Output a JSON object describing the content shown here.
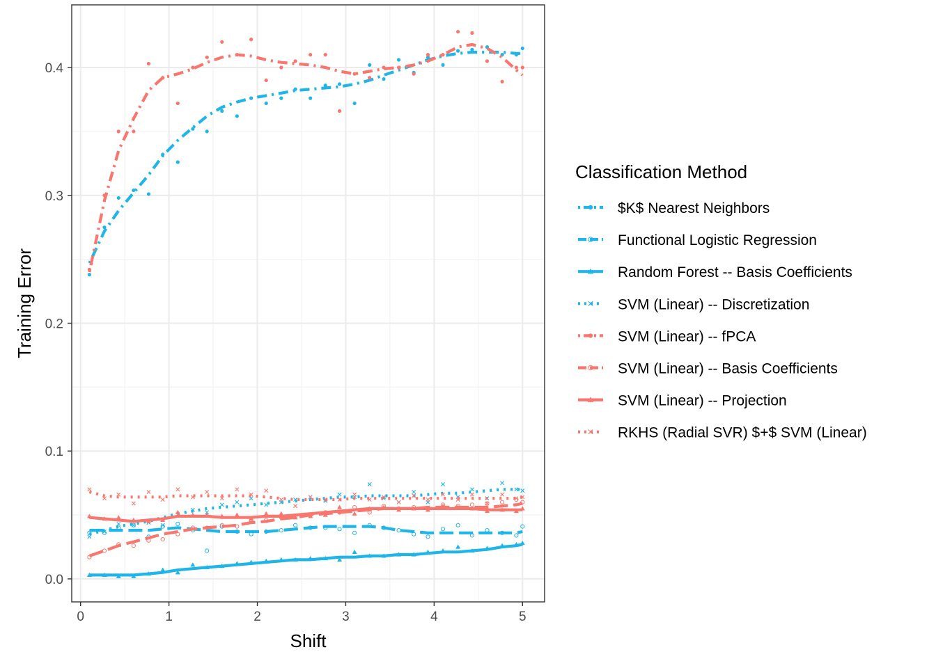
{
  "chart_data": {
    "type": "line",
    "xlabel": "Shift",
    "ylabel": "Training Error",
    "xlim": [
      -0.1,
      5.25
    ],
    "ylim": [
      -0.018,
      0.449
    ],
    "xticks": [
      0,
      1,
      2,
      3,
      4,
      5
    ],
    "yticks": [
      0.0,
      0.1,
      0.2,
      0.3,
      0.4
    ],
    "xtick_labels": [
      "0",
      "1",
      "2",
      "3",
      "4",
      "5"
    ],
    "ytick_labels": [
      "0.0",
      "0.1",
      "0.2",
      "0.3",
      "0.4"
    ],
    "grid": true,
    "legend": {
      "title": "Classification Method",
      "position": "right"
    },
    "colors": {
      "blue": "#00B0F0",
      "red": "#F8766D"
    },
    "series": [
      {
        "name": "$K$ Nearest Neighbors",
        "color": "#1FB5E8",
        "linestyle": "dotdash",
        "marker": "dot",
        "x": [
          0.1,
          0.27,
          0.43,
          0.6,
          0.77,
          0.93,
          1.1,
          1.27,
          1.43,
          1.6,
          1.77,
          1.93,
          2.1,
          2.27,
          2.43,
          2.6,
          2.77,
          2.93,
          3.1,
          3.27,
          3.43,
          3.6,
          3.77,
          3.93,
          4.1,
          4.27,
          4.43,
          4.6,
          4.77,
          4.93,
          5.0
        ],
        "y": [
          0.238,
          0.275,
          0.298,
          0.304,
          0.301,
          0.332,
          0.326,
          0.352,
          0.35,
          0.366,
          0.362,
          0.376,
          0.372,
          0.376,
          0.383,
          0.376,
          0.386,
          0.387,
          0.372,
          0.402,
          0.391,
          0.406,
          0.396,
          0.408,
          0.402,
          0.413,
          0.414,
          0.416,
          0.41,
          0.41,
          0.415
        ],
        "trend": [
          0.247,
          0.272,
          0.288,
          0.302,
          0.316,
          0.331,
          0.343,
          0.353,
          0.362,
          0.369,
          0.373,
          0.376,
          0.378,
          0.38,
          0.382,
          0.383,
          0.384,
          0.385,
          0.387,
          0.39,
          0.394,
          0.398,
          0.402,
          0.406,
          0.409,
          0.411,
          0.412,
          0.412,
          0.412,
          0.411,
          0.411
        ]
      },
      {
        "name": "Functional Logistic Regression",
        "color": "#1FB5E8",
        "linestyle": "longdash",
        "marker": "circle-open",
        "x": [
          0.1,
          0.27,
          0.43,
          0.6,
          0.77,
          0.93,
          1.1,
          1.27,
          1.43,
          1.6,
          1.77,
          1.93,
          2.1,
          2.27,
          2.43,
          2.6,
          2.77,
          2.93,
          3.1,
          3.27,
          3.43,
          3.6,
          3.77,
          3.93,
          4.1,
          4.27,
          4.43,
          4.6,
          4.77,
          4.93,
          5.0
        ],
        "y": [
          0.036,
          0.036,
          0.04,
          0.042,
          0.033,
          0.041,
          0.043,
          0.038,
          0.022,
          0.041,
          0.037,
          0.035,
          0.037,
          0.038,
          0.042,
          0.04,
          0.04,
          0.039,
          0.036,
          0.042,
          0.04,
          0.038,
          0.035,
          0.033,
          0.039,
          0.042,
          0.034,
          0.038,
          0.036,
          0.034,
          0.041
        ],
        "trend": [
          0.038,
          0.038,
          0.038,
          0.038,
          0.038,
          0.039,
          0.04,
          0.039,
          0.038,
          0.037,
          0.037,
          0.037,
          0.037,
          0.038,
          0.039,
          0.04,
          0.041,
          0.041,
          0.041,
          0.041,
          0.04,
          0.038,
          0.037,
          0.036,
          0.036,
          0.036,
          0.036,
          0.036,
          0.036,
          0.036,
          0.037
        ]
      },
      {
        "name": "Random Forest -- Basis Coefficients",
        "color": "#1FB5E8",
        "linestyle": "solid",
        "marker": "triangle",
        "x": [
          0.1,
          0.27,
          0.43,
          0.6,
          0.77,
          0.93,
          1.1,
          1.27,
          1.43,
          1.6,
          1.77,
          1.93,
          2.1,
          2.27,
          2.43,
          2.6,
          2.77,
          2.93,
          3.1,
          3.27,
          3.43,
          3.6,
          3.77,
          3.93,
          4.1,
          4.27,
          4.43,
          4.6,
          4.77,
          4.93,
          5.0
        ],
        "y": [
          0.003,
          0.003,
          0.002,
          0.002,
          0.004,
          0.007,
          0.005,
          0.011,
          0.009,
          0.01,
          0.012,
          0.013,
          0.014,
          0.015,
          0.015,
          0.016,
          0.016,
          0.015,
          0.021,
          0.018,
          0.018,
          0.019,
          0.019,
          0.021,
          0.022,
          0.025,
          0.022,
          0.024,
          0.026,
          0.027,
          0.028
        ],
        "trend": [
          0.003,
          0.003,
          0.003,
          0.003,
          0.004,
          0.005,
          0.007,
          0.008,
          0.009,
          0.01,
          0.011,
          0.012,
          0.013,
          0.014,
          0.015,
          0.015,
          0.016,
          0.017,
          0.017,
          0.018,
          0.018,
          0.019,
          0.019,
          0.02,
          0.021,
          0.021,
          0.022,
          0.023,
          0.025,
          0.026,
          0.027
        ]
      },
      {
        "name": "SVM (Linear) -- Discretization",
        "color": "#1FB5E8",
        "linestyle": "dotted",
        "marker": "x",
        "x": [
          0.1,
          0.27,
          0.43,
          0.6,
          0.77,
          0.93,
          1.1,
          1.27,
          1.43,
          1.6,
          1.77,
          1.93,
          2.1,
          2.27,
          2.43,
          2.6,
          2.77,
          2.93,
          3.1,
          3.27,
          3.43,
          3.6,
          3.77,
          3.93,
          4.1,
          4.27,
          4.43,
          4.6,
          4.77,
          4.93,
          5.0
        ],
        "y": [
          0.033,
          0.037,
          0.043,
          0.042,
          0.044,
          0.042,
          0.05,
          0.054,
          0.052,
          0.058,
          0.06,
          0.063,
          0.058,
          0.06,
          0.062,
          0.064,
          0.061,
          0.066,
          0.064,
          0.074,
          0.063,
          0.06,
          0.068,
          0.06,
          0.074,
          0.064,
          0.07,
          0.063,
          0.075,
          0.07,
          0.069
        ],
        "trend": [
          0.035,
          0.038,
          0.041,
          0.043,
          0.045,
          0.048,
          0.051,
          0.053,
          0.055,
          0.056,
          0.057,
          0.058,
          0.059,
          0.06,
          0.061,
          0.062,
          0.063,
          0.064,
          0.064,
          0.065,
          0.065,
          0.065,
          0.065,
          0.066,
          0.067,
          0.067,
          0.068,
          0.069,
          0.07,
          0.07,
          0.07
        ]
      },
      {
        "name": "SVM (Linear) -- fPCA",
        "color": "#F8766D",
        "linestyle": "dotdash",
        "marker": "dot",
        "x": [
          0.1,
          0.27,
          0.43,
          0.6,
          0.77,
          0.93,
          1.1,
          1.27,
          1.43,
          1.6,
          1.77,
          1.93,
          2.1,
          2.27,
          2.43,
          2.6,
          2.77,
          2.93,
          3.1,
          3.27,
          3.43,
          3.6,
          3.77,
          3.93,
          4.1,
          4.27,
          4.43,
          4.6,
          4.77,
          4.93,
          5.0
        ],
        "y": [
          0.242,
          0.3,
          0.35,
          0.35,
          0.403,
          0.392,
          0.372,
          0.4,
          0.408,
          0.42,
          0.41,
          0.422,
          0.39,
          0.4,
          0.405,
          0.41,
          0.41,
          0.366,
          0.395,
          0.392,
          0.4,
          0.4,
          0.395,
          0.41,
          0.41,
          0.428,
          0.427,
          0.405,
          0.389,
          0.4,
          0.4
        ],
        "trend": [
          0.24,
          0.296,
          0.335,
          0.36,
          0.382,
          0.392,
          0.395,
          0.399,
          0.404,
          0.408,
          0.41,
          0.409,
          0.406,
          0.404,
          0.403,
          0.402,
          0.4,
          0.397,
          0.395,
          0.397,
          0.399,
          0.4,
          0.402,
          0.405,
          0.41,
          0.416,
          0.418,
          0.415,
          0.408,
          0.398,
          0.394
        ]
      },
      {
        "name": "SVM (Linear) -- Basis Coefficients",
        "color": "#F8766D",
        "linestyle": "longdash",
        "marker": "circle-open",
        "x": [
          0.1,
          0.27,
          0.43,
          0.6,
          0.77,
          0.93,
          1.1,
          1.27,
          1.43,
          1.6,
          1.77,
          1.93,
          2.1,
          2.27,
          2.43,
          2.6,
          2.77,
          2.93,
          3.1,
          3.27,
          3.43,
          3.6,
          3.77,
          3.93,
          4.1,
          4.27,
          4.43,
          4.6,
          4.77,
          4.93,
          5.0
        ],
        "y": [
          0.017,
          0.022,
          0.027,
          0.026,
          0.03,
          0.031,
          0.035,
          0.04,
          0.04,
          0.042,
          0.041,
          0.046,
          0.046,
          0.048,
          0.049,
          0.05,
          0.052,
          0.052,
          0.056,
          0.052,
          0.057,
          0.055,
          0.056,
          0.055,
          0.058,
          0.057,
          0.058,
          0.059,
          0.06,
          0.062,
          0.06
        ],
        "trend": [
          0.018,
          0.022,
          0.026,
          0.029,
          0.032,
          0.035,
          0.037,
          0.039,
          0.04,
          0.041,
          0.042,
          0.044,
          0.045,
          0.047,
          0.048,
          0.05,
          0.051,
          0.052,
          0.053,
          0.054,
          0.055,
          0.055,
          0.055,
          0.056,
          0.056,
          0.056,
          0.056,
          0.056,
          0.057,
          0.058,
          0.059
        ]
      },
      {
        "name": "SVM (Linear) -- Projection",
        "color": "#F8766D",
        "linestyle": "solid",
        "marker": "triangle",
        "x": [
          0.1,
          0.27,
          0.43,
          0.6,
          0.77,
          0.93,
          1.1,
          1.27,
          1.43,
          1.6,
          1.77,
          1.93,
          2.1,
          2.27,
          2.43,
          2.6,
          2.77,
          2.93,
          3.1,
          3.27,
          3.43,
          3.6,
          3.77,
          3.93,
          4.1,
          4.27,
          4.43,
          4.6,
          4.77,
          4.93,
          5.0
        ],
        "y": [
          0.049,
          0.047,
          0.048,
          0.046,
          0.045,
          0.046,
          0.052,
          0.05,
          0.05,
          0.049,
          0.05,
          0.047,
          0.051,
          0.051,
          0.048,
          0.049,
          0.05,
          0.056,
          0.051,
          0.055,
          0.056,
          0.054,
          0.055,
          0.054,
          0.057,
          0.056,
          0.055,
          0.053,
          0.054,
          0.053,
          0.055
        ],
        "trend": [
          0.048,
          0.047,
          0.046,
          0.045,
          0.046,
          0.047,
          0.049,
          0.049,
          0.049,
          0.048,
          0.048,
          0.048,
          0.049,
          0.049,
          0.05,
          0.051,
          0.052,
          0.053,
          0.054,
          0.055,
          0.055,
          0.055,
          0.055,
          0.055,
          0.055,
          0.055,
          0.055,
          0.054,
          0.054,
          0.054,
          0.054
        ]
      },
      {
        "name": "RKHS (Radial SVR) $+$ SVM (Linear)",
        "color": "#F8766D",
        "linestyle": "dotted",
        "marker": "x",
        "x": [
          0.1,
          0.27,
          0.43,
          0.6,
          0.77,
          0.93,
          1.1,
          1.27,
          1.43,
          1.6,
          1.77,
          1.93,
          2.1,
          2.27,
          2.43,
          2.6,
          2.77,
          2.93,
          3.1,
          3.27,
          3.43,
          3.6,
          3.77,
          3.93,
          4.1,
          4.27,
          4.43,
          4.6,
          4.77,
          4.93,
          5.0
        ],
        "y": [
          0.07,
          0.063,
          0.066,
          0.059,
          0.068,
          0.062,
          0.07,
          0.064,
          0.068,
          0.063,
          0.07,
          0.066,
          0.069,
          0.062,
          0.057,
          0.064,
          0.062,
          0.062,
          0.066,
          0.062,
          0.064,
          0.06,
          0.065,
          0.062,
          0.066,
          0.062,
          0.066,
          0.059,
          0.066,
          0.063,
          0.064
        ],
        "trend": [
          0.068,
          0.065,
          0.064,
          0.064,
          0.064,
          0.064,
          0.065,
          0.065,
          0.065,
          0.065,
          0.065,
          0.065,
          0.064,
          0.063,
          0.062,
          0.062,
          0.062,
          0.062,
          0.063,
          0.063,
          0.063,
          0.063,
          0.063,
          0.063,
          0.063,
          0.063,
          0.063,
          0.063,
          0.063,
          0.063,
          0.064
        ]
      }
    ]
  }
}
